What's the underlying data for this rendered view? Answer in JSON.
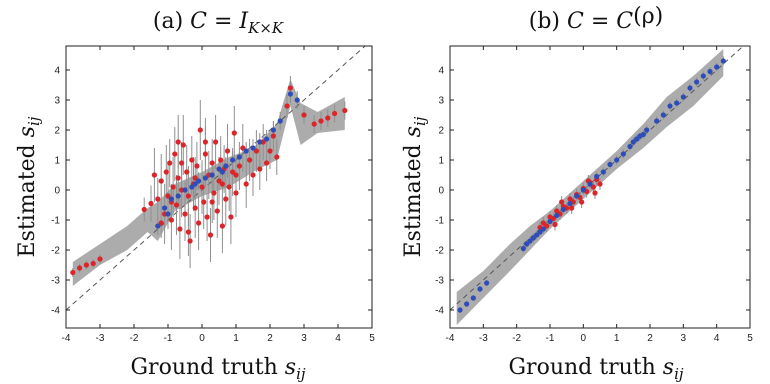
{
  "figure": {
    "panels": [
      {
        "id": "a",
        "title_prefix": "(a) ",
        "title_math": "C",
        "title_eq": " = ",
        "title_rhs": "I",
        "title_rhs_sub": "K×K",
        "title_rhs_tail": "",
        "xlabel_text": "Ground truth ",
        "xlabel_var": "s",
        "xlabel_sub": "ij",
        "ylabel_text": "Estimated ",
        "ylabel_var": "s",
        "ylabel_sub": "ij"
      },
      {
        "id": "b",
        "title_prefix": "(b) ",
        "title_math": "C",
        "title_eq": " = ",
        "title_rhs": "C",
        "title_rhs_sub": "",
        "title_rhs_tail": "(ρ)",
        "xlabel_text": "Ground truth ",
        "xlabel_var": "s",
        "xlabel_sub": "ij",
        "ylabel_text": "Estimated ",
        "ylabel_var": "s",
        "ylabel_sub": "ij"
      }
    ]
  },
  "chart_data": [
    {
      "type": "scatter",
      "xlim": [
        -4,
        5
      ],
      "ylim": [
        -4.6,
        4.8
      ],
      "xticks": [
        -4,
        -3,
        -2,
        -1,
        0,
        1,
        2,
        3,
        4,
        5
      ],
      "yticks": [
        -4,
        -3,
        -2,
        -1,
        0,
        1,
        2,
        3,
        4
      ],
      "grid": false,
      "identity_line": true,
      "colors": {
        "red": "#d9262b",
        "blue": "#2f4db8",
        "band": "#9e9e9e",
        "errorbar": "#8f8f8f",
        "diag": "#555555"
      },
      "band": [
        {
          "x": -3.8,
          "lo": -3.2,
          "hi": -2.4
        },
        {
          "x": -3.0,
          "lo": -2.5,
          "hi": -1.8
        },
        {
          "x": -2.2,
          "lo": -2.0,
          "hi": -1.2
        },
        {
          "x": -1.6,
          "lo": -1.4,
          "hi": -0.6
        },
        {
          "x": -1.3,
          "lo": -1.7,
          "hi": -0.4
        },
        {
          "x": -0.8,
          "lo": -0.7,
          "hi": 0.2
        },
        {
          "x": 0.0,
          "lo": -0.2,
          "hi": 0.6
        },
        {
          "x": 0.8,
          "lo": 0.1,
          "hi": 1.1
        },
        {
          "x": 1.5,
          "lo": 0.6,
          "hi": 1.4
        },
        {
          "x": 2.2,
          "lo": 1.0,
          "hi": 2.2
        },
        {
          "x": 2.6,
          "lo": 2.8,
          "hi": 3.7
        },
        {
          "x": 2.9,
          "lo": 1.5,
          "hi": 2.9
        },
        {
          "x": 3.4,
          "lo": 1.9,
          "hi": 2.6
        },
        {
          "x": 4.2,
          "lo": 2.0,
          "hi": 3.1
        }
      ],
      "series": [
        {
          "name": "",
          "color": "red",
          "points": [
            [
              -3.8,
              -2.75,
              0.15
            ],
            [
              -3.6,
              -2.6,
              0.15
            ],
            [
              -3.4,
              -2.5,
              0.15
            ],
            [
              -3.2,
              -2.45,
              0.15
            ],
            [
              -3.0,
              -2.3,
              0.15
            ],
            [
              -1.7,
              -0.65,
              0.4
            ],
            [
              -1.5,
              -0.45,
              0.6
            ],
            [
              -1.4,
              0.5,
              0.9
            ],
            [
              -1.3,
              -0.3,
              0.7
            ],
            [
              -1.2,
              0.3,
              0.9
            ],
            [
              -1.1,
              -0.8,
              1.0
            ],
            [
              -1.05,
              0.6,
              0.9
            ],
            [
              -1.0,
              -0.2,
              1.1
            ],
            [
              -0.95,
              0.9,
              0.8
            ],
            [
              -0.9,
              -1.0,
              1.0
            ],
            [
              -0.85,
              0.1,
              1.0
            ],
            [
              -0.8,
              1.2,
              0.9
            ],
            [
              -0.75,
              -0.5,
              1.0
            ],
            [
              -0.7,
              0.4,
              0.8
            ],
            [
              -0.65,
              -1.3,
              1.0
            ],
            [
              -0.6,
              0.0,
              0.9
            ],
            [
              -0.55,
              1.5,
              1.0
            ],
            [
              -0.5,
              -0.8,
              0.9
            ],
            [
              -0.45,
              0.6,
              0.9
            ],
            [
              -0.4,
              -0.2,
              1.0
            ],
            [
              -0.35,
              -1.7,
              0.9
            ],
            [
              -0.3,
              1.0,
              0.8
            ],
            [
              -0.25,
              0.2,
              0.9
            ],
            [
              -0.2,
              -0.6,
              1.0
            ],
            [
              -0.15,
              0.8,
              0.8
            ],
            [
              -0.1,
              -1.1,
              0.9
            ],
            [
              -0.05,
              2.0,
              1.0
            ],
            [
              0.0,
              0.1,
              0.9
            ],
            [
              0.05,
              -0.4,
              0.9
            ],
            [
              0.1,
              1.2,
              0.9
            ],
            [
              0.15,
              -0.9,
              0.8
            ],
            [
              0.2,
              0.5,
              0.8
            ],
            [
              0.25,
              -1.5,
              0.9
            ],
            [
              0.3,
              0.9,
              0.8
            ],
            [
              0.35,
              -0.1,
              0.9
            ],
            [
              0.4,
              1.6,
              0.9
            ],
            [
              0.45,
              -0.7,
              0.9
            ],
            [
              0.5,
              0.3,
              0.8
            ],
            [
              0.55,
              1.0,
              0.8
            ],
            [
              0.6,
              -1.2,
              0.9
            ],
            [
              0.65,
              0.7,
              0.8
            ],
            [
              0.7,
              -0.3,
              0.9
            ],
            [
              0.75,
              1.3,
              0.9
            ],
            [
              0.8,
              0.1,
              0.8
            ],
            [
              0.85,
              -0.9,
              0.9
            ],
            [
              0.9,
              0.6,
              0.8
            ],
            [
              0.95,
              1.9,
              0.9
            ],
            [
              1.0,
              -0.1,
              0.8
            ],
            [
              1.1,
              0.8,
              0.8
            ],
            [
              1.2,
              1.4,
              0.8
            ],
            [
              1.3,
              0.2,
              0.8
            ],
            [
              1.4,
              1.0,
              0.7
            ],
            [
              1.5,
              0.5,
              0.7
            ],
            [
              1.6,
              1.3,
              0.7
            ],
            [
              1.7,
              0.7,
              0.7
            ],
            [
              1.8,
              1.6,
              0.6
            ],
            [
              1.9,
              0.9,
              0.6
            ],
            [
              2.0,
              1.3,
              0.6
            ],
            [
              2.1,
              1.8,
              0.5
            ],
            [
              2.2,
              1.1,
              0.6
            ],
            [
              -1.2,
              -1.1,
              0.5
            ],
            [
              -0.9,
              -0.4,
              0.6
            ],
            [
              -0.6,
              0.9,
              0.7
            ],
            [
              -0.2,
              0.4,
              0.7
            ],
            [
              0.3,
              -0.4,
              0.7
            ],
            [
              0.6,
              0.2,
              0.6
            ],
            [
              1.0,
              0.5,
              0.6
            ],
            [
              -0.4,
              -1.4,
              0.8
            ],
            [
              0.1,
              1.6,
              0.8
            ],
            [
              -0.7,
              1.6,
              0.9
            ],
            [
              2.5,
              2.8,
              0.4
            ],
            [
              2.6,
              3.4,
              0.4
            ],
            [
              3.0,
              2.5,
              0.3
            ],
            [
              3.3,
              2.2,
              0.3
            ],
            [
              3.5,
              2.3,
              0.3
            ],
            [
              3.7,
              2.4,
              0.3
            ],
            [
              3.9,
              2.55,
              0.3
            ],
            [
              4.2,
              2.65,
              0.3
            ]
          ]
        },
        {
          "name": "",
          "color": "blue",
          "points": [
            [
              -1.3,
              -1.2,
              0.3
            ],
            [
              -1.1,
              -0.6,
              0.3
            ],
            [
              -0.9,
              -0.3,
              0.3
            ],
            [
              -0.7,
              -0.2,
              0.3
            ],
            [
              -0.5,
              0.0,
              0.3
            ],
            [
              -0.3,
              0.1,
              0.3
            ],
            [
              -0.1,
              0.3,
              0.3
            ],
            [
              0.1,
              0.4,
              0.3
            ],
            [
              0.3,
              0.5,
              0.3
            ],
            [
              0.5,
              0.7,
              0.3
            ],
            [
              0.7,
              0.8,
              0.3
            ],
            [
              0.9,
              1.0,
              0.3
            ],
            [
              1.1,
              1.1,
              0.3
            ],
            [
              1.3,
              1.3,
              0.3
            ],
            [
              1.5,
              1.4,
              0.3
            ],
            [
              1.7,
              1.6,
              0.3
            ],
            [
              1.9,
              1.7,
              0.3
            ],
            [
              2.1,
              2.0,
              0.3
            ],
            [
              2.3,
              2.3,
              0.3
            ],
            [
              2.6,
              3.2,
              0.3
            ],
            [
              2.8,
              3.0,
              0.3
            ],
            [
              -1.0,
              -0.8,
              0.3
            ],
            [
              -0.2,
              0.2,
              0.3
            ],
            [
              0.6,
              0.6,
              0.3
            ]
          ]
        }
      ]
    },
    {
      "type": "scatter",
      "xlim": [
        -4,
        5
      ],
      "ylim": [
        -4.6,
        4.8
      ],
      "xticks": [
        -4,
        -3,
        -2,
        -1,
        0,
        1,
        2,
        3,
        4,
        5
      ],
      "yticks": [
        -4,
        -3,
        -2,
        -1,
        0,
        1,
        2,
        3,
        4
      ],
      "grid": false,
      "identity_line": true,
      "colors": {
        "red": "#d9262b",
        "blue": "#2f4db8",
        "band": "#9e9e9e",
        "errorbar": "#8f8f8f",
        "diag": "#555555"
      },
      "band": [
        {
          "x": -3.8,
          "lo": -4.5,
          "hi": -3.4
        },
        {
          "x": -3.0,
          "lo": -3.6,
          "hi": -2.7
        },
        {
          "x": -2.2,
          "lo": -2.7,
          "hi": -1.8
        },
        {
          "x": -1.6,
          "lo": -2.0,
          "hi": -1.2
        },
        {
          "x": -1.0,
          "lo": -1.3,
          "hi": -0.7
        },
        {
          "x": 0.0,
          "lo": -0.3,
          "hi": 0.3
        },
        {
          "x": 1.0,
          "lo": 0.7,
          "hi": 1.3
        },
        {
          "x": 1.8,
          "lo": 1.4,
          "hi": 2.2
        },
        {
          "x": 2.5,
          "lo": 2.1,
          "hi": 3.1
        },
        {
          "x": 3.3,
          "lo": 2.8,
          "hi": 3.8
        },
        {
          "x": 4.2,
          "lo": 3.8,
          "hi": 4.7
        }
      ],
      "series": [
        {
          "name": "",
          "color": "red",
          "points": [
            [
              -1.3,
              -1.25,
              0.2
            ],
            [
              -1.2,
              -1.1,
              0.2
            ],
            [
              -1.1,
              -1.2,
              0.2
            ],
            [
              -1.0,
              -0.9,
              0.2
            ],
            [
              -0.9,
              -0.95,
              0.2
            ],
            [
              -0.8,
              -0.7,
              0.2
            ],
            [
              -0.7,
              -0.8,
              0.2
            ],
            [
              -0.6,
              -0.55,
              0.2
            ],
            [
              -0.5,
              -0.6,
              0.2
            ],
            [
              -0.4,
              -0.3,
              0.2
            ],
            [
              -0.3,
              -0.4,
              0.2
            ],
            [
              -0.2,
              -0.15,
              0.2
            ],
            [
              -0.1,
              -0.25,
              0.2
            ],
            [
              0.0,
              0.05,
              0.2
            ],
            [
              0.1,
              -0.05,
              0.2
            ],
            [
              0.2,
              0.25,
              0.2
            ],
            [
              0.3,
              0.1,
              0.2
            ],
            [
              0.4,
              0.35,
              0.2
            ],
            [
              0.5,
              0.2,
              0.2
            ],
            [
              -0.65,
              -0.4,
              0.2
            ],
            [
              -0.35,
              -0.6,
              0.2
            ],
            [
              0.15,
              0.3,
              0.2
            ],
            [
              -0.85,
              -1.15,
              0.2
            ],
            [
              -0.05,
              -0.4,
              0.2
            ],
            [
              0.35,
              -0.1,
              0.2
            ]
          ]
        },
        {
          "name": "",
          "color": "blue",
          "points": [
            [
              -3.7,
              -4.0,
              0.1
            ],
            [
              -3.5,
              -3.8,
              0.1
            ],
            [
              -3.3,
              -3.6,
              0.1
            ],
            [
              -3.1,
              -3.3,
              0.1
            ],
            [
              -2.9,
              -3.1,
              0.1
            ],
            [
              -1.8,
              -1.95,
              0.15
            ],
            [
              -1.7,
              -1.8,
              0.15
            ],
            [
              -1.6,
              -1.7,
              0.15
            ],
            [
              -1.5,
              -1.6,
              0.15
            ],
            [
              -1.4,
              -1.5,
              0.15
            ],
            [
              -1.3,
              -1.4,
              0.15
            ],
            [
              -1.2,
              -1.3,
              0.15
            ],
            [
              -1.0,
              -1.05,
              0.15
            ],
            [
              -0.8,
              -0.85,
              0.15
            ],
            [
              -0.6,
              -0.65,
              0.15
            ],
            [
              -0.4,
              -0.45,
              0.15
            ],
            [
              -0.2,
              -0.2,
              0.15
            ],
            [
              0.0,
              0.0,
              0.15
            ],
            [
              0.2,
              0.2,
              0.15
            ],
            [
              0.4,
              0.45,
              0.15
            ],
            [
              0.6,
              0.6,
              0.15
            ],
            [
              0.8,
              0.85,
              0.15
            ],
            [
              1.0,
              1.0,
              0.15
            ],
            [
              1.2,
              1.2,
              0.15
            ],
            [
              1.4,
              1.45,
              0.15
            ],
            [
              1.5,
              1.6,
              0.15
            ],
            [
              1.6,
              1.7,
              0.15
            ],
            [
              1.7,
              1.8,
              0.15
            ],
            [
              1.8,
              1.85,
              0.15
            ],
            [
              1.9,
              2.0,
              0.15
            ],
            [
              2.2,
              2.3,
              0.15
            ],
            [
              2.4,
              2.5,
              0.15
            ],
            [
              2.6,
              2.8,
              0.15
            ],
            [
              2.8,
              2.9,
              0.15
            ],
            [
              3.0,
              3.1,
              0.15
            ],
            [
              3.2,
              3.4,
              0.15
            ],
            [
              3.4,
              3.6,
              0.15
            ],
            [
              3.6,
              3.8,
              0.15
            ],
            [
              3.8,
              3.95,
              0.15
            ],
            [
              4.0,
              4.1,
              0.15
            ],
            [
              4.2,
              4.3,
              0.15
            ]
          ]
        }
      ]
    }
  ]
}
